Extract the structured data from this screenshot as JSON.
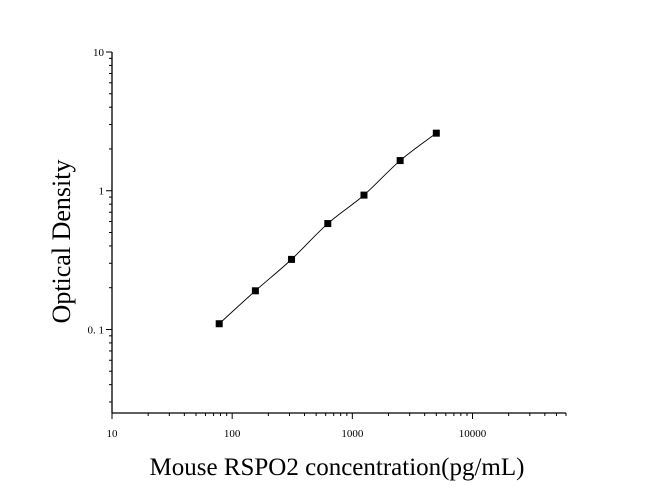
{
  "chart_data": {
    "type": "scatter",
    "title": "",
    "xlabel": "Mouse RSPO2 concentration(pg/mL)",
    "ylabel": "Optical Density",
    "x_scale": "log",
    "y_scale": "log",
    "xlim": [
      10,
      60000
    ],
    "ylim": [
      0.025,
      10
    ],
    "x_ticks": [
      10,
      100,
      1000,
      10000
    ],
    "x_tick_labels": [
      "10",
      "100",
      "1000",
      "10000"
    ],
    "y_ticks": [
      0.1,
      1,
      10
    ],
    "y_tick_labels": [
      "0. 1",
      "1",
      "10"
    ],
    "grid": false,
    "legend": false,
    "series": [
      {
        "x": [
          78,
          156,
          312,
          625,
          1250,
          2500,
          5000
        ],
        "y": [
          0.11,
          0.19,
          0.32,
          0.58,
          0.93,
          1.65,
          2.6
        ],
        "marker": "square",
        "fit_line": true
      }
    ],
    "colors": {
      "marker": "#000000",
      "line": "#000000"
    }
  }
}
